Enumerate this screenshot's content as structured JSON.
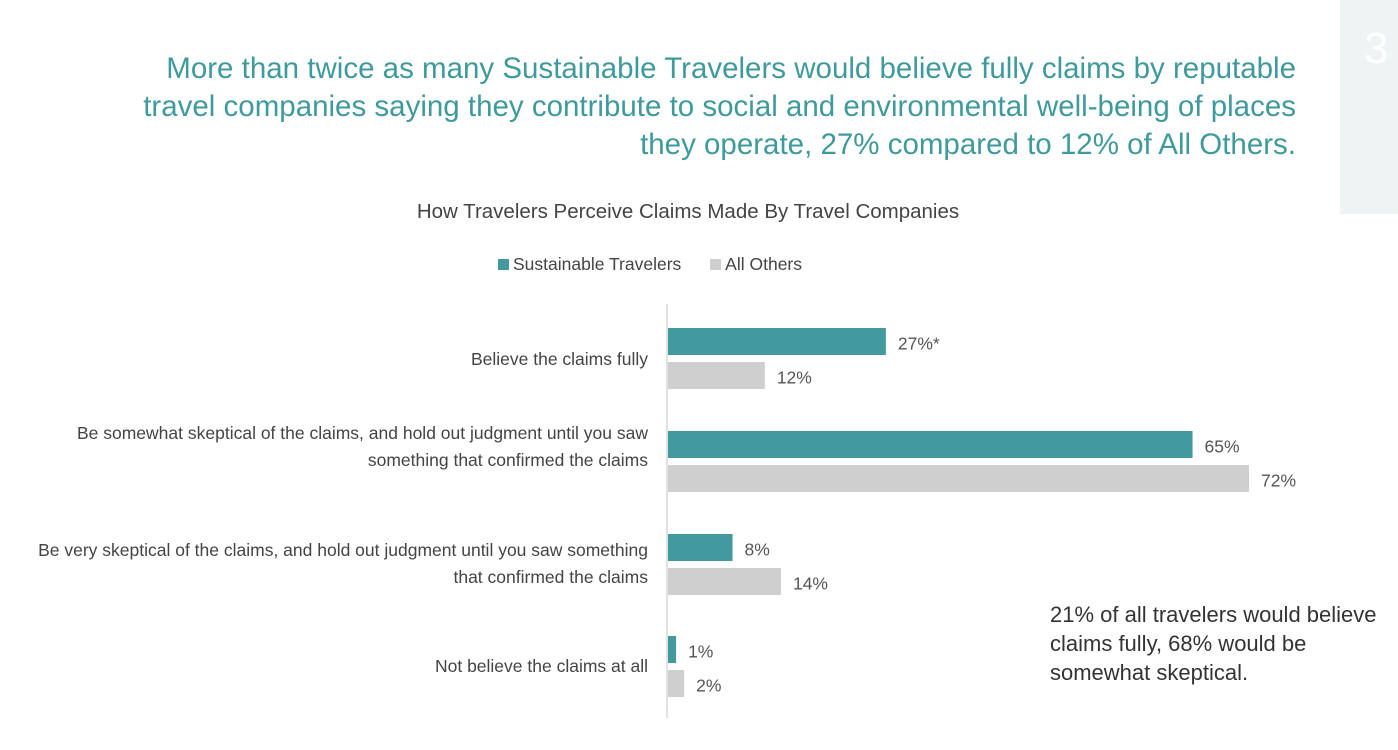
{
  "page_number": "3",
  "headline": "More than twice as many Sustainable Travelers would believe fully claims by reputable travel companies saying they contribute to social and environmental well-being of places they operate, 27% compared to 12% of All Others.",
  "callout": "21% of all travelers would believe claims fully, 68% would be somewhat skeptical.",
  "colors": {
    "accent": "#3e9a9c",
    "series1": "#429a9e",
    "series2": "#cfcfcf"
  },
  "chart_data": {
    "type": "bar",
    "orientation": "horizontal",
    "title": "How Travelers Perceive Claims Made By Travel Companies",
    "legend_position": "top",
    "grid": false,
    "categories": [
      "Believe the claims fully",
      "Be somewhat skeptical of the claims, and hold out judgment until you saw something that confirmed the claims",
      "Be very skeptical of the claims, and hold out judgment until you saw something that confirmed the claims",
      "Not believe the claims at all"
    ],
    "series": [
      {
        "name": "Sustainable Travelers",
        "values": [
          27,
          65,
          8,
          1
        ],
        "labels": [
          "27%*",
          "65%",
          "8%",
          "1%"
        ]
      },
      {
        "name": "All Others",
        "values": [
          12,
          72,
          14,
          2
        ],
        "labels": [
          "12%",
          "72%",
          "14%",
          "2%"
        ]
      }
    ],
    "xlim": [
      0,
      80
    ]
  }
}
